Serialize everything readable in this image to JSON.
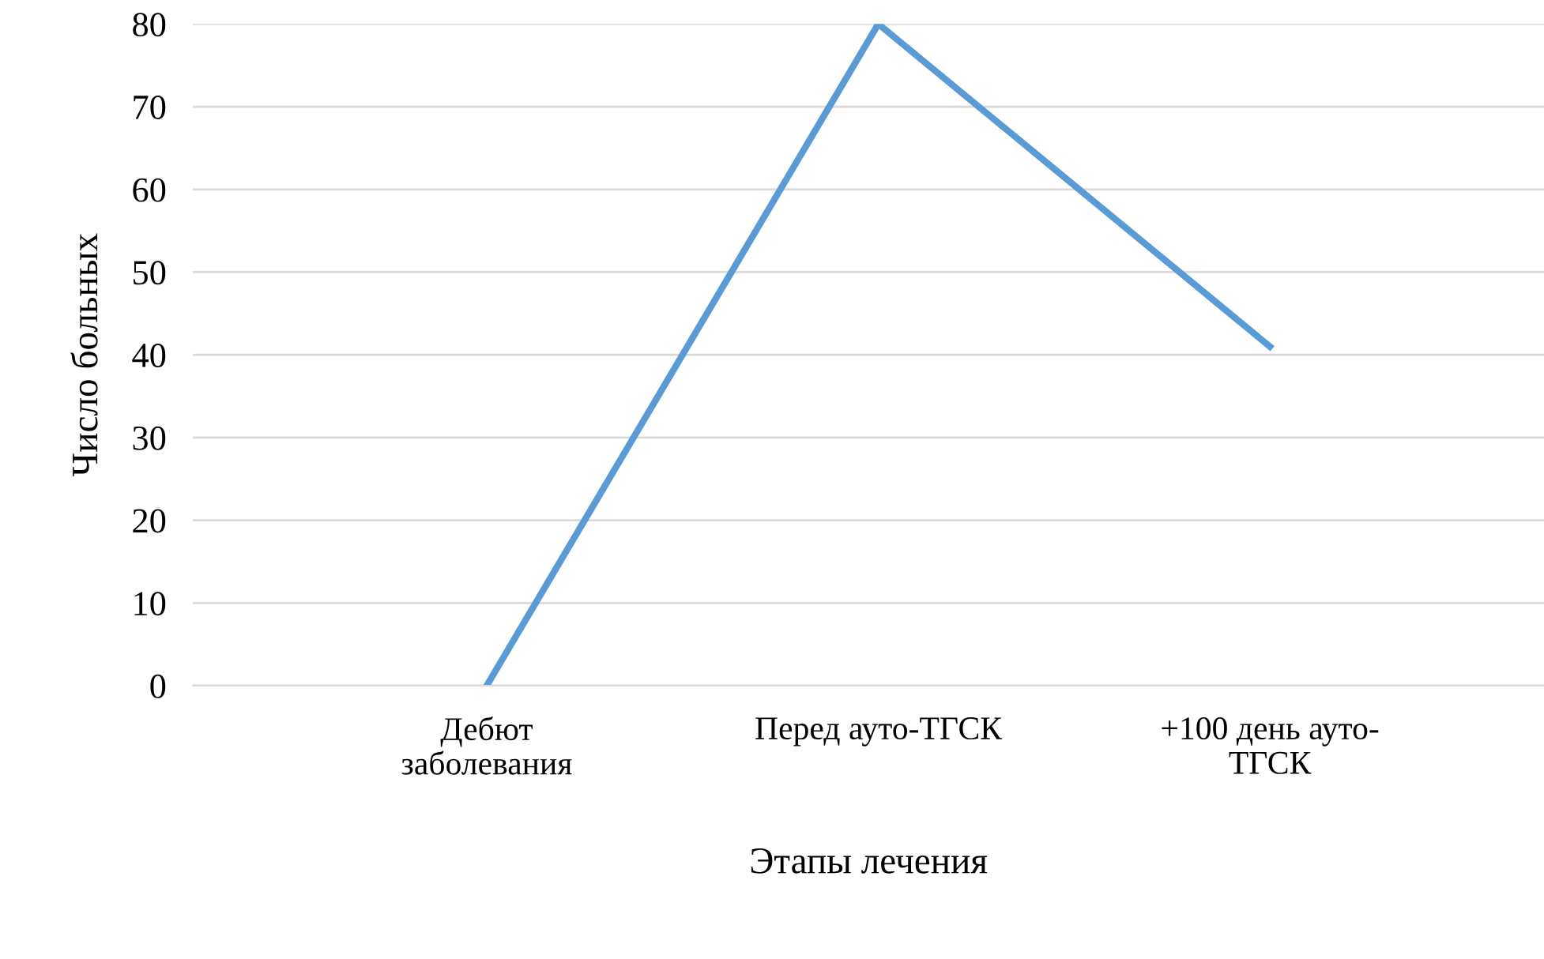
{
  "chart_data": {
    "type": "line",
    "xlabel": "Этапы лечения",
    "ylabel": "Число больных",
    "categories": [
      "Дебют\nзаболевания",
      "Перед ауто-ТГСК",
      "+100 день ауто-\nТГСК"
    ],
    "series": [
      {
        "color": "#5b9bd5",
        "values": [
          0,
          80,
          41
        ]
      }
    ],
    "ylim": [
      0,
      80
    ],
    "yticks": [
      0,
      10,
      20,
      30,
      40,
      50,
      60,
      70,
      80
    ],
    "grid": "y",
    "marker": "none",
    "line_style": "solid"
  }
}
